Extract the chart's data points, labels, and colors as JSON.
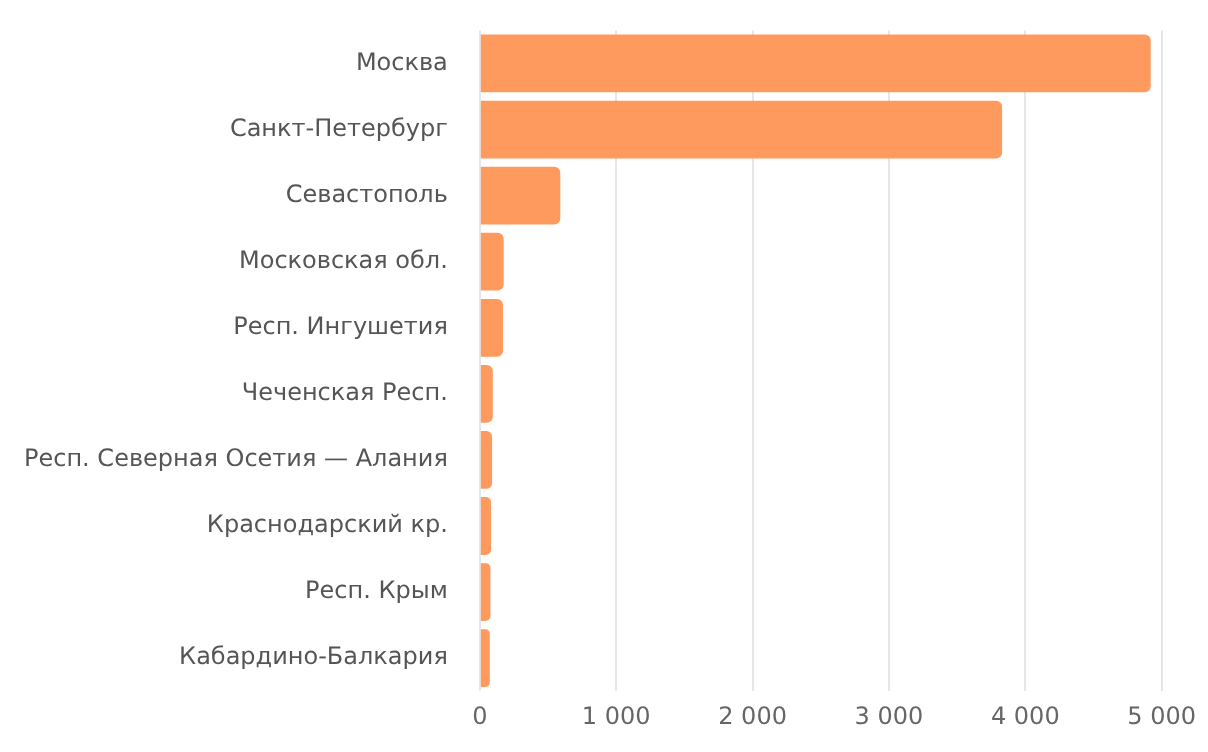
{
  "chart_data": {
    "type": "bar",
    "orientation": "horizontal",
    "categories": [
      "Москва",
      "Санкт-Петербург",
      "Севастополь",
      "Московская обл.",
      "Респ. Ингушетия",
      "Чеченская Респ.",
      "Респ. Северная Осетия — Алания",
      "Краснодарский кр.",
      "Респ. Крым",
      "Кабардино-Балкария"
    ],
    "values": [
      4920,
      3830,
      590,
      175,
      170,
      95,
      90,
      82,
      78,
      73
    ],
    "color": "#fe9a5e",
    "xlim": [
      0,
      5000
    ],
    "xticks": [
      {
        "value": 0,
        "label": "0"
      },
      {
        "value": 1000,
        "label": "1 000"
      },
      {
        "value": 2000,
        "label": "2 000"
      },
      {
        "value": 3000,
        "label": "3 000"
      },
      {
        "value": 4000,
        "label": "4 000"
      },
      {
        "value": 5000,
        "label": "5 000"
      }
    ],
    "grid": "x"
  }
}
